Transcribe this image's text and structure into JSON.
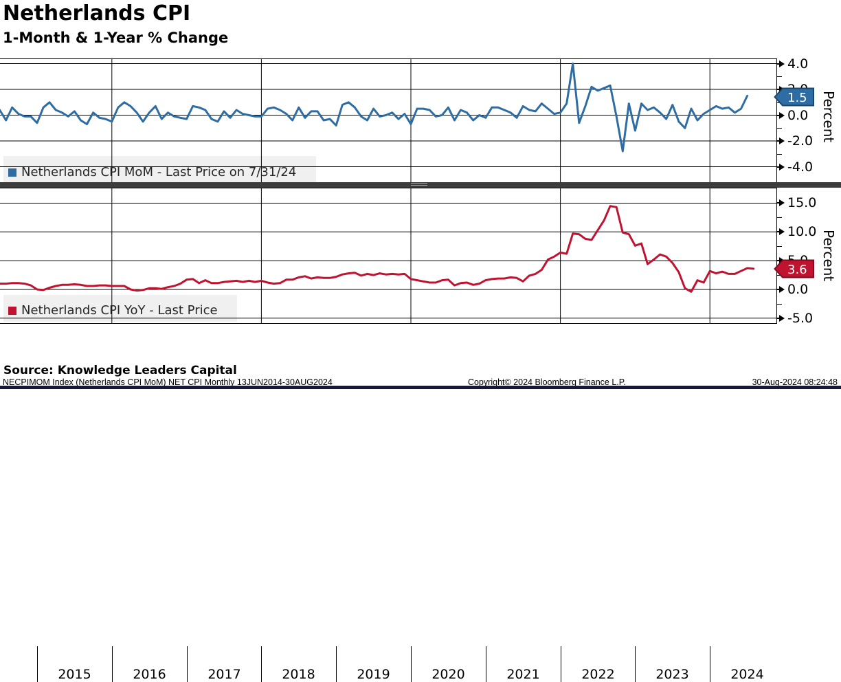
{
  "header": {
    "title": "Netherlands CPI",
    "subtitle": "1-Month & 1-Year % Change"
  },
  "colors": {
    "mom_blue": "#2E6DA4",
    "mom_blue_border": "#1B4568",
    "yoy_red": "#C01330",
    "yoy_red_border": "#7D0C20",
    "legend_bg": "#F0F0F0",
    "grid": "#000000",
    "divider": "#3D3D3D",
    "bottom_bar": "#17173A"
  },
  "top_panel": {
    "legend": "Netherlands CPI MoM - Last Price on 7/31/24",
    "axis_title": "Percent",
    "last_price": "1.5",
    "yticks": [
      {
        "v": 4,
        "label": "4.0"
      },
      {
        "v": 2,
        "label": "2.0"
      },
      {
        "v": 0,
        "label": "0.0"
      },
      {
        "v": -2,
        "label": "-2.0"
      },
      {
        "v": -4,
        "label": "-4.0"
      }
    ]
  },
  "bottom_panel": {
    "legend": "Netherlands CPI YoY - Last Price",
    "axis_title": "Percent",
    "last_price": "3.6",
    "yticks": [
      {
        "v": 15,
        "label": "15.0"
      },
      {
        "v": 10,
        "label": "10.0"
      },
      {
        "v": 5,
        "label": "5.0"
      },
      {
        "v": 0,
        "label": "0.0"
      },
      {
        "v": -5,
        "label": "-5.0"
      }
    ]
  },
  "x_axis": {
    "years": [
      "2015",
      "2016",
      "2017",
      "2018",
      "2019",
      "2020",
      "2021",
      "2022",
      "2023",
      "2024"
    ]
  },
  "source_note": "Source: Knowledge Leaders Capital",
  "footer": {
    "left": "NECPIMOM Index (Netherlands CPI MoM) NET CPI  Monthly 13JUN2014-30AUG2024",
    "center": "Copyright© 2024 Bloomberg Finance L.P.",
    "right": "30-Aug-2024 08:24:48"
  },
  "chart_data": [
    {
      "type": "line",
      "name": "Netherlands CPI MoM",
      "unit": "Percent",
      "frequency": "monthly",
      "x_start": "2014-06",
      "x_end": "2024-07",
      "last_price": 1.5,
      "last_price_date": "7/31/24",
      "axis_range": [
        -4,
        4
      ],
      "color": "#2E6DA4",
      "values": [
        0.2,
        0.4,
        -0.4,
        0.6,
        0.1,
        -0.1,
        -0.1,
        -0.6,
        0.6,
        1.0,
        0.4,
        0.2,
        -0.1,
        0.3,
        -0.4,
        -0.7,
        0.2,
        -0.2,
        -0.3,
        -0.5,
        0.6,
        1.0,
        0.7,
        0.2,
        -0.5,
        0.2,
        0.7,
        -0.3,
        0.2,
        -0.1,
        -0.2,
        -0.3,
        0.7,
        0.6,
        0.4,
        -0.3,
        -0.5,
        0.3,
        -0.2,
        0.4,
        0.1,
        0.0,
        -0.1,
        -0.1,
        0.5,
        0.6,
        0.4,
        0.1,
        -0.4,
        0.6,
        -0.2,
        0.3,
        0.3,
        -0.4,
        -0.3,
        -0.8,
        0.8,
        1.0,
        0.6,
        -0.1,
        -0.4,
        0.5,
        -0.1,
        0.0,
        0.2,
        -0.3,
        0.1,
        -0.7,
        0.5,
        0.5,
        0.4,
        -0.1,
        0.0,
        0.6,
        -0.4,
        0.4,
        0.2,
        -0.4,
        0.0,
        -0.2,
        0.6,
        0.6,
        0.4,
        0.2,
        -0.2,
        0.7,
        0.4,
        0.3,
        0.9,
        0.5,
        0.1,
        0.2,
        0.9,
        4.0,
        -0.6,
        0.7,
        2.2,
        1.9,
        2.1,
        2.3,
        -0.1,
        -2.8,
        0.9,
        -1.2,
        0.9,
        0.4,
        0.6,
        0.2,
        -0.3,
        0.8,
        -0.5,
        -1.0,
        0.5,
        -0.4,
        0.1,
        0.4,
        0.7,
        0.5,
        0.6,
        0.2,
        0.5,
        1.5
      ]
    },
    {
      "type": "line",
      "name": "Netherlands CPI YoY",
      "unit": "Percent",
      "frequency": "monthly",
      "x_start": "2014-06",
      "x_end": "2024-08",
      "last_price": 3.6,
      "axis_range": [
        -5,
        15
      ],
      "color": "#C01330",
      "values": [
        0.9,
        1.0,
        1.0,
        1.1,
        1.1,
        1.0,
        0.7,
        0.0,
        -0.1,
        0.3,
        0.6,
        0.8,
        0.8,
        0.9,
        0.8,
        0.6,
        0.6,
        0.7,
        0.7,
        0.6,
        0.6,
        0.6,
        0.0,
        -0.2,
        -0.1,
        0.2,
        0.2,
        0.1,
        0.4,
        0.6,
        1.0,
        1.7,
        1.8,
        1.1,
        1.6,
        1.1,
        1.1,
        1.3,
        1.4,
        1.5,
        1.3,
        1.5,
        1.3,
        1.5,
        1.2,
        1.0,
        1.1,
        1.7,
        1.7,
        2.1,
        2.3,
        1.9,
        2.1,
        2.0,
        2.0,
        2.2,
        2.6,
        2.8,
        2.9,
        2.4,
        2.7,
        2.5,
        2.8,
        2.6,
        2.7,
        2.6,
        2.7,
        1.8,
        1.6,
        1.4,
        1.2,
        1.2,
        1.6,
        1.7,
        0.7,
        1.1,
        1.2,
        0.8,
        1.0,
        1.6,
        1.8,
        1.9,
        1.9,
        2.1,
        2.0,
        1.4,
        2.4,
        2.7,
        3.4,
        5.2,
        5.7,
        6.4,
        6.2,
        9.7,
        9.6,
        8.8,
        8.6,
        10.3,
        12.0,
        14.5,
        14.3,
        9.9,
        9.6,
        7.6,
        8.0,
        4.4,
        5.2,
        6.1,
        5.7,
        4.6,
        3.0,
        0.2,
        -0.4,
        1.6,
        1.2,
        3.2,
        2.8,
        3.1,
        2.7,
        2.7,
        3.2,
        3.7,
        3.6
      ]
    }
  ]
}
